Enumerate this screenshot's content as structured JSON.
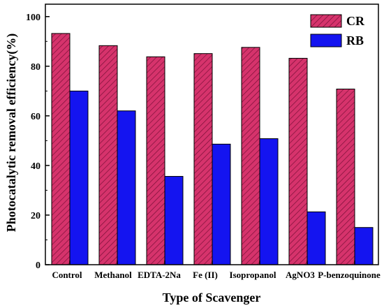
{
  "chart_data": {
    "type": "bar",
    "xlabel": "Type of Scavenger",
    "ylabel": "Photocatalytic removal efficiency(%)",
    "ylim": [
      0,
      105
    ],
    "yticks": [
      0,
      20,
      40,
      60,
      80,
      100
    ],
    "categories": [
      "Control",
      "Methanol",
      "EDTA-2Na",
      "Fe (II)",
      "Isopropanol",
      "AgNO3",
      "P-benzoquinone"
    ],
    "series": [
      {
        "name": "CR",
        "color": "#d6336c",
        "pattern": "hatched",
        "values": [
          93.2,
          88.3,
          83.8,
          85.1,
          87.6,
          83.2,
          70.8
        ]
      },
      {
        "name": "RB",
        "color": "#1414f0",
        "pattern": "solid",
        "values": [
          70.0,
          62.0,
          35.6,
          48.6,
          50.8,
          21.3,
          15.0
        ]
      }
    ],
    "legend_position": "top-right",
    "grid": false
  }
}
